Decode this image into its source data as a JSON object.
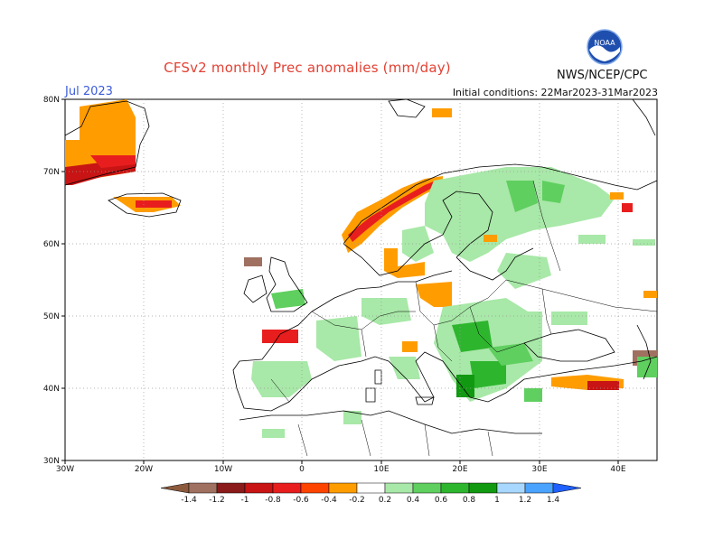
{
  "header": {
    "title": "CFSv2 monthly Prec anomalies (mm/day)",
    "month": "Jul 2023",
    "initial_conditions": "Initial conditions: 22Mar2023-31Mar2023",
    "org": "NWS/NCEP/CPC",
    "logo_icon": "noaa-logo-icon",
    "logo_text": "NOAA"
  },
  "axes": {
    "lat_labels": [
      "80N",
      "70N",
      "60N",
      "50N",
      "40N",
      "30N"
    ],
    "lon_labels": [
      "30W",
      "20W",
      "10W",
      "0",
      "10E",
      "20E",
      "30E",
      "40E"
    ]
  },
  "colorbar": {
    "labels": [
      "-1.4",
      "-1.2",
      "-1",
      "-0.8",
      "-0.6",
      "-0.4",
      "-0.2",
      "0.2",
      "0.4",
      "0.6",
      "0.8",
      "1",
      "1.2",
      "1.4"
    ],
    "colors": [
      "#8b5a3c",
      "#a07060",
      "#8b1a1a",
      "#c81414",
      "#e81e1e",
      "#ff4400",
      "#ff9d00",
      "#ffffff",
      "#a8e8a8",
      "#5fcf5f",
      "#2eb52e",
      "#119911",
      "#a8d8ff",
      "#4aa3ff",
      "#2060ff"
    ]
  }
}
